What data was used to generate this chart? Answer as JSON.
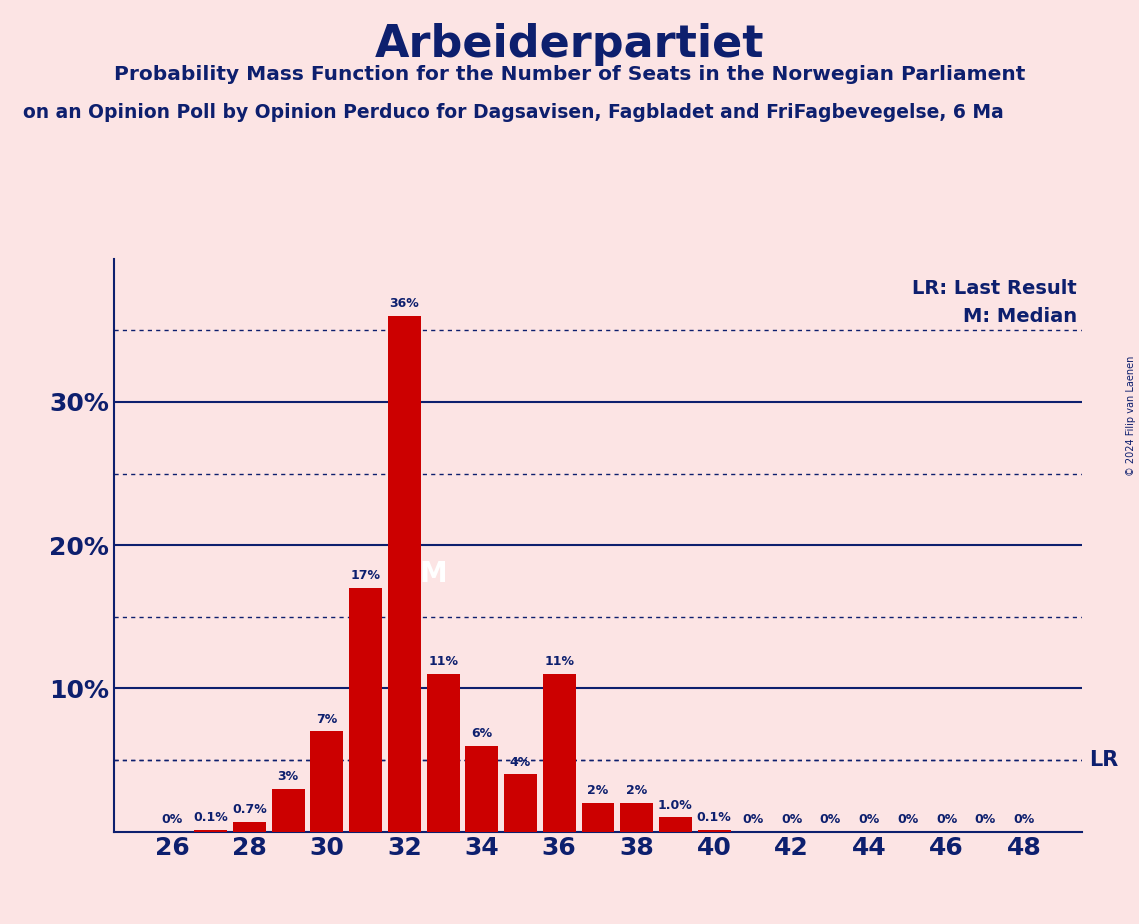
{
  "title": "Arbeiderpartiet",
  "subtitle1": "Probability Mass Function for the Number of Seats in the Norwegian Parliament",
  "subtitle2": "on an Opinion Poll by Opinion Perduco for Dagsavisen, Fagbladet and FriFagbevegelse, 6 Ma",
  "copyright": "© 2024 Filip van Laenen",
  "seats": [
    26,
    27,
    28,
    29,
    30,
    31,
    32,
    33,
    34,
    35,
    36,
    37,
    38,
    39,
    40,
    41,
    42,
    43,
    44,
    45,
    46,
    47,
    48
  ],
  "probabilities": [
    0.0,
    0.1,
    0.7,
    3.0,
    7.0,
    17.0,
    36.0,
    11.0,
    6.0,
    4.0,
    11.0,
    2.0,
    2.0,
    1.0,
    0.1,
    0.0,
    0.0,
    0.0,
    0.0,
    0.0,
    0.0,
    0.0,
    0.0
  ],
  "labels": [
    "0%",
    "0.1%",
    "0.7%",
    "3%",
    "7%",
    "17%",
    "36%",
    "11%",
    "6%",
    "4%",
    "11%",
    "2%",
    "2%",
    "1.0%",
    "0.1%",
    "0%",
    "0%",
    "0%",
    "0%",
    "0%",
    "0%",
    "0%",
    "0%"
  ],
  "bar_color": "#cc0000",
  "bg_color": "#fce4e4",
  "text_color": "#0d1f6e",
  "median_seat": 32,
  "last_result_pct": 5.0,
  "ylim": [
    0,
    40
  ],
  "solid_yticks": [
    10,
    20,
    30
  ],
  "dotted_yticks": [
    5,
    15,
    25,
    35
  ],
  "lr_line_y": 5.0,
  "xlabel_ticks": [
    26,
    28,
    30,
    32,
    34,
    36,
    38,
    40,
    42,
    44,
    46,
    48
  ],
  "bar_width": 0.85
}
